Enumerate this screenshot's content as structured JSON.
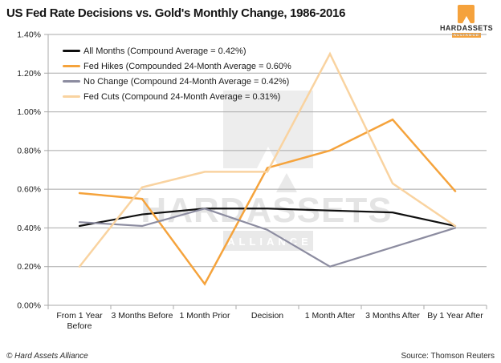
{
  "header": {
    "title": "US Fed Rate Decisions vs. Gold's Monthly Change, 1986-2016",
    "logo": {
      "brand": "HARDASSETS",
      "alliance": "ALLIANCE"
    }
  },
  "watermark": {
    "text": "HARDASSETS",
    "subtext": "ALLIANCE"
  },
  "footer": {
    "copyright": "© Hard Assets Alliance",
    "source": "Source: Thomson Reuters"
  },
  "chart_data": {
    "type": "line",
    "title": "US Fed Rate Decisions vs. Gold's Monthly Change, 1986-2016",
    "categories": [
      "From 1 Year Before",
      "3 Months Before",
      "1 Month Prior",
      "Decision",
      "1 Month After",
      "3 Months After",
      "By 1 Year After"
    ],
    "series": [
      {
        "name": "All Months",
        "legend_label": "All Months (Compound Average = 0.42%)",
        "color": "#0f0f0f",
        "stroke_width": 2.2,
        "values": [
          0.41,
          0.47,
          0.5,
          0.5,
          0.49,
          0.48,
          0.41
        ]
      },
      {
        "name": "Fed Hikes",
        "legend_label": "Fed Hikes (Compounded 24-Month Average = 0.60%",
        "color": "#F5A33C",
        "stroke_width": 2.5,
        "values": [
          0.58,
          0.55,
          0.11,
          0.71,
          0.8,
          0.96,
          0.59
        ]
      },
      {
        "name": "No Change",
        "legend_label": "No Change (Compound 24-Month Average = 0.42%)",
        "color": "#8C8CA0",
        "stroke_width": 2.2,
        "values": [
          0.43,
          0.41,
          0.5,
          0.39,
          0.2,
          0.3,
          0.4
        ]
      },
      {
        "name": "Fed Cuts",
        "legend_label": "Fed Cuts (Compound 24-Month Average = 0.31%)",
        "color": "#F9D3A0",
        "stroke_width": 2.5,
        "values": [
          0.2,
          0.61,
          0.69,
          0.69,
          1.3,
          0.63,
          0.41
        ]
      }
    ],
    "y_ticks": [
      {
        "label": "0.00%",
        "value": 0.0
      },
      {
        "label": "0.20%",
        "value": 0.2
      },
      {
        "label": "0.40%",
        "value": 0.4
      },
      {
        "label": "0.60%",
        "value": 0.6
      },
      {
        "label": "0.80%",
        "value": 0.8
      },
      {
        "label": "1.00%",
        "value": 1.0
      },
      {
        "label": "1.20%",
        "value": 1.2
      },
      {
        "label": "1.40%",
        "value": 1.4
      }
    ],
    "ylim": [
      0,
      1.4
    ],
    "grid": true,
    "grid_color": "#a8a8a8",
    "legend_position": "top-left",
    "xlabel": "",
    "ylabel": ""
  }
}
